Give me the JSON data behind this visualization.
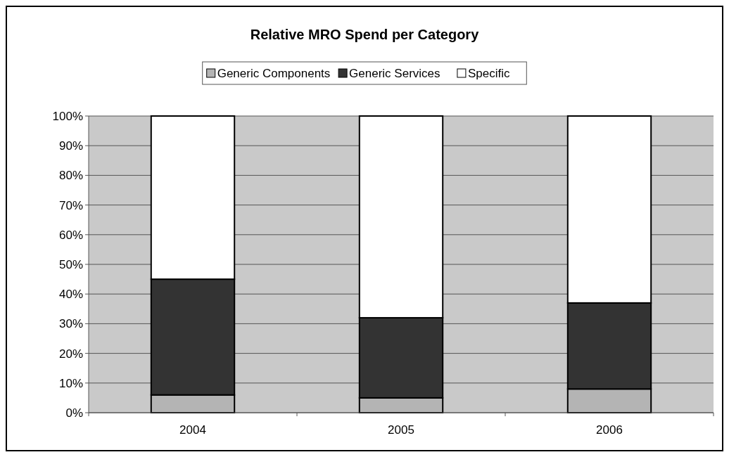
{
  "chart_data": {
    "type": "bar",
    "title": "Relative MRO Spend per Category",
    "categories": [
      "2004",
      "2005",
      "2006"
    ],
    "stacked": true,
    "series": [
      {
        "name": "Generic Components",
        "color": "#b4b4b4",
        "values": [
          6,
          5,
          8
        ]
      },
      {
        "name": "Generic Services",
        "color": "#333333",
        "values": [
          39,
          27,
          29
        ]
      },
      {
        "name": "Specific",
        "color": "#ffffff",
        "values": [
          55,
          68,
          63
        ]
      }
    ],
    "ylim": [
      0,
      100
    ],
    "yticks": [
      {
        "value": 0,
        "label": "0%"
      },
      {
        "value": 10,
        "label": "10%"
      },
      {
        "value": 20,
        "label": "20%"
      },
      {
        "value": 30,
        "label": "30%"
      },
      {
        "value": 40,
        "label": "40%"
      },
      {
        "value": 50,
        "label": "50%"
      },
      {
        "value": 60,
        "label": "60%"
      },
      {
        "value": 70,
        "label": "70%"
      },
      {
        "value": 80,
        "label": "80%"
      },
      {
        "value": 90,
        "label": "90%"
      },
      {
        "value": 100,
        "label": "100%"
      }
    ],
    "grid": "y",
    "legend": "top"
  }
}
